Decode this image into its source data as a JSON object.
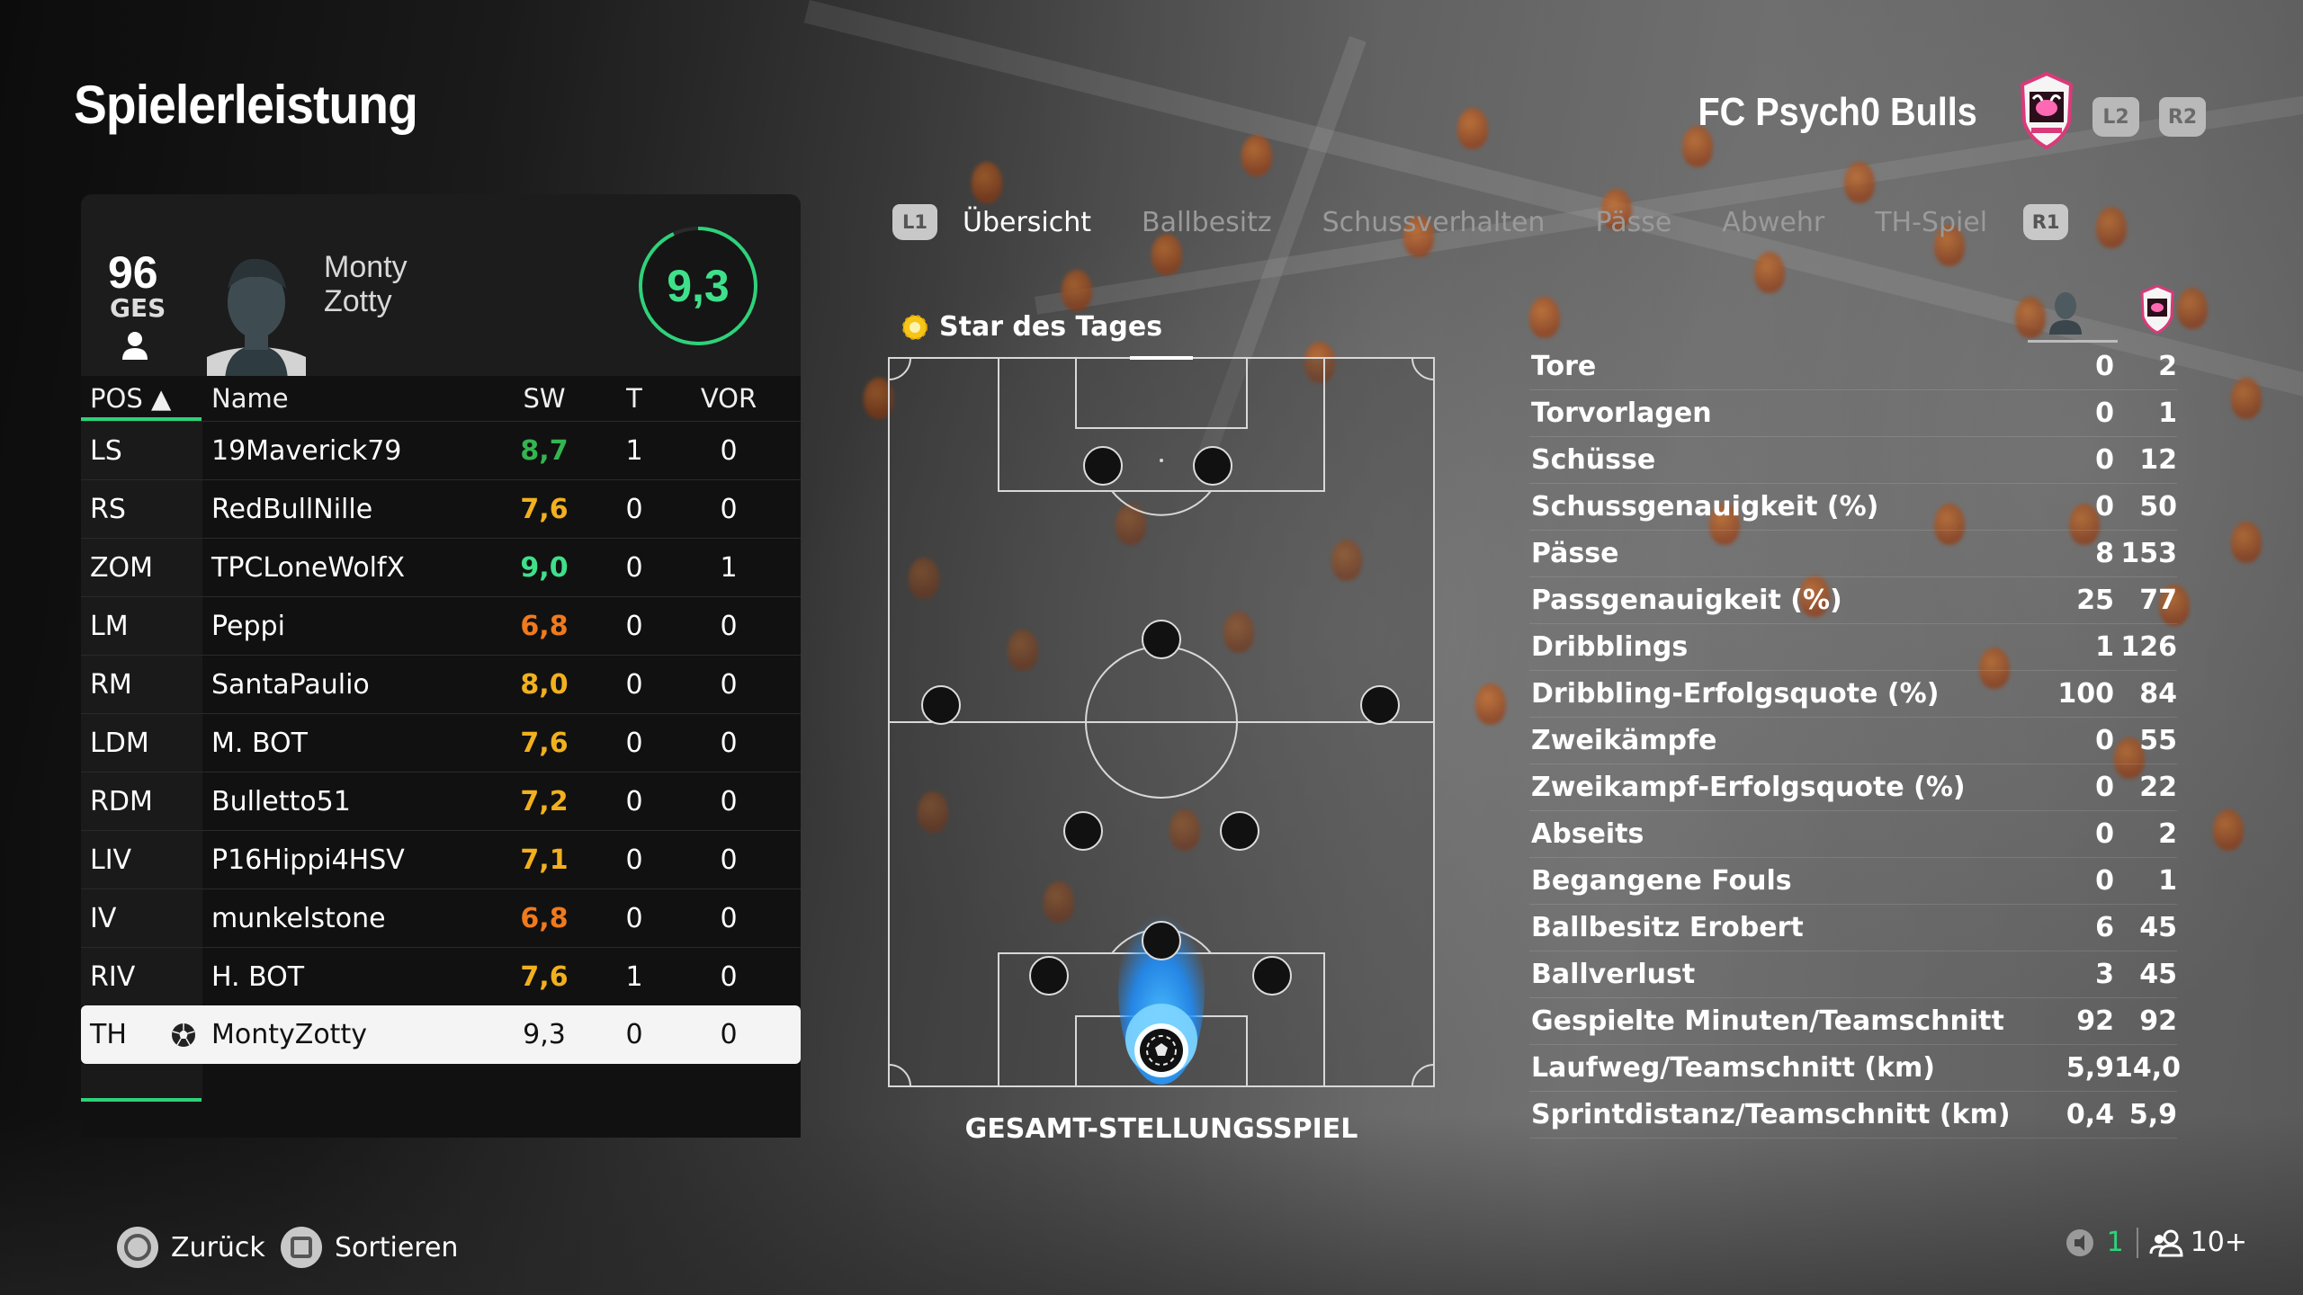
{
  "header": {
    "title": "Spielerleistung",
    "club_name": "FC Psych0 Bulls",
    "l2_label": "L2",
    "r2_label": "R2"
  },
  "player_card": {
    "overall": "96",
    "overall_label": "GES",
    "first_name": "Monty",
    "last_name": "Zotty",
    "rating": "9,3",
    "rating_fraction": 0.93
  },
  "table": {
    "headers": {
      "pos": "POS ▲",
      "name": "Name",
      "sw": "SW",
      "t": "T",
      "vor": "VOR"
    },
    "rows": [
      {
        "pos": "LS",
        "name": "19Maverick79",
        "sw": "8,7",
        "t": "1",
        "vor": "0",
        "color": "#34b551"
      },
      {
        "pos": "RS",
        "name": "RedBullNille",
        "sw": "7,6",
        "t": "0",
        "vor": "0",
        "color": "#f2b01e"
      },
      {
        "pos": "ZOM",
        "name": "TPCLoneWolfX",
        "sw": "9,0",
        "t": "0",
        "vor": "1",
        "color": "#3fe08a"
      },
      {
        "pos": "LM",
        "name": "Peppi",
        "sw": "6,8",
        "t": "0",
        "vor": "0",
        "color": "#f07a1c"
      },
      {
        "pos": "RM",
        "name": "SantaPaulio",
        "sw": "8,0",
        "t": "0",
        "vor": "0",
        "color": "#f2b01e"
      },
      {
        "pos": "LDM",
        "name": "M. BOT",
        "sw": "7,6",
        "t": "0",
        "vor": "0",
        "color": "#f2b01e"
      },
      {
        "pos": "RDM",
        "name": "Bulletto51",
        "sw": "7,2",
        "t": "0",
        "vor": "0",
        "color": "#f2b01e"
      },
      {
        "pos": "LIV",
        "name": "P16Hippi4HSV",
        "sw": "7,1",
        "t": "0",
        "vor": "0",
        "color": "#f2b01e"
      },
      {
        "pos": "IV",
        "name": "munkelstone",
        "sw": "6,8",
        "t": "0",
        "vor": "0",
        "color": "#f07a1c"
      },
      {
        "pos": "RIV",
        "name": "H. BOT",
        "sw": "7,6",
        "t": "1",
        "vor": "0",
        "color": "#f2b01e"
      },
      {
        "pos": "TH",
        "name": "MontyZotty",
        "sw": "9,3",
        "t": "0",
        "vor": "0",
        "color": "#111111"
      }
    ]
  },
  "tabs": {
    "l1_label": "L1",
    "r1_label": "R1",
    "items": [
      "Übersicht",
      "Ballbesitz",
      "Schussverhalten",
      "Pässe",
      "Abwehr",
      "TH-Spiel"
    ]
  },
  "pitch": {
    "star_label": "Star des Tages",
    "caption": "GESAMT-STELLUNGSSPIEL"
  },
  "stats": [
    {
      "label": "Tore",
      "player": "0",
      "team": "2"
    },
    {
      "label": "Torvorlagen",
      "player": "0",
      "team": "1"
    },
    {
      "label": "Schüsse",
      "player": "0",
      "team": "12"
    },
    {
      "label": "Schussgenauigkeit (%)",
      "player": "0",
      "team": "50"
    },
    {
      "label": "Pässe",
      "player": "8",
      "team": "153"
    },
    {
      "label": "Passgenauigkeit (%)",
      "player": "25",
      "team": "77"
    },
    {
      "label": "Dribblings",
      "player": "1",
      "team": "126"
    },
    {
      "label": "Dribbling-Erfolgsquote (%)",
      "player": "100",
      "team": "84"
    },
    {
      "label": "Zweikämpfe",
      "player": "0",
      "team": "55"
    },
    {
      "label": "Zweikampf-Erfolgsquote (%)",
      "player": "0",
      "team": "22"
    },
    {
      "label": "Abseits",
      "player": "0",
      "team": "2"
    },
    {
      "label": "Begangene Fouls",
      "player": "0",
      "team": "1"
    },
    {
      "label": "Ballbesitz Erobert",
      "player": "6",
      "team": "45"
    },
    {
      "label": "Ballverlust",
      "player": "3",
      "team": "45"
    },
    {
      "label": "Gespielte Minuten/Teamschnitt",
      "player": "92",
      "team": "92"
    },
    {
      "label": "Laufweg/Teamschnitt (km)",
      "player": "5,9",
      "team": "14,0"
    },
    {
      "label": "Sprintdistanz/Teamschnitt (km)",
      "player": "0,4",
      "team": "5,9"
    }
  ],
  "footer": {
    "back_label": "Zurück",
    "sort_label": "Sortieren",
    "mic_count": "1",
    "players_count": "10+"
  },
  "colors": {
    "accent_green": "#2ed27a",
    "rating_green": "#3fe08a"
  }
}
